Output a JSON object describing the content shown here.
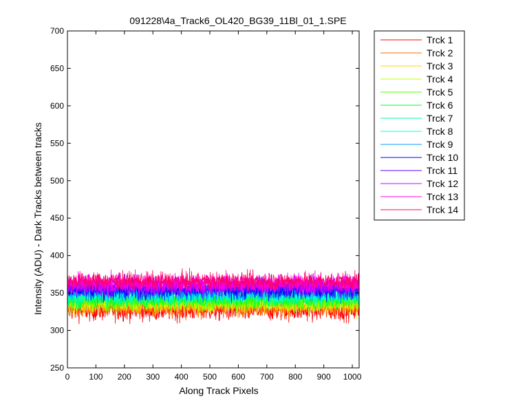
{
  "chart_data": {
    "type": "line",
    "title": "091228\\4a_Track6_OL420_BG39_11Bl_01_1.SPE",
    "xlabel": "Along Track Pixels",
    "ylabel": "Intensity (ADU) - Dark Tracks between tracks",
    "xlim": [
      0,
      1024
    ],
    "ylim": [
      250,
      700
    ],
    "xticks": [
      0,
      100,
      200,
      300,
      400,
      500,
      600,
      700,
      800,
      900,
      1000
    ],
    "yticks": [
      250,
      300,
      350,
      400,
      450,
      500,
      550,
      600,
      650,
      700
    ],
    "grid": false,
    "legend_position": "outside-right-top",
    "x_range": [
      1,
      1024
    ],
    "series": [
      {
        "name": "Trck 1",
        "color": "#ff0000",
        "mean": 327,
        "noise": 12
      },
      {
        "name": "Trck 2",
        "color": "#ff6a00",
        "mean": 332,
        "noise": 12
      },
      {
        "name": "Trck 3",
        "color": "#ffd500",
        "mean": 335,
        "noise": 11
      },
      {
        "name": "Trck 4",
        "color": "#c4ff00",
        "mean": 338,
        "noise": 11
      },
      {
        "name": "Trck 5",
        "color": "#55ff00",
        "mean": 340,
        "noise": 11
      },
      {
        "name": "Trck 6",
        "color": "#00ff2a",
        "mean": 343,
        "noise": 11
      },
      {
        "name": "Trck 7",
        "color": "#00ff99",
        "mean": 346,
        "noise": 11
      },
      {
        "name": "Trck 8",
        "color": "#00ffee",
        "mean": 349,
        "noise": 11
      },
      {
        "name": "Trck 9",
        "color": "#0099ff",
        "mean": 352,
        "noise": 11
      },
      {
        "name": "Trck 10",
        "color": "#0000ff",
        "mean": 355,
        "noise": 11
      },
      {
        "name": "Trck 11",
        "color": "#6600ff",
        "mean": 358,
        "noise": 11
      },
      {
        "name": "Trck 12",
        "color": "#cc00ff",
        "mean": 361,
        "noise": 11
      },
      {
        "name": "Trck 13",
        "color": "#ff00e6",
        "mean": 363,
        "noise": 11
      },
      {
        "name": "Trck 14",
        "color": "#ff0066",
        "mean": 366,
        "noise": 10
      }
    ]
  }
}
